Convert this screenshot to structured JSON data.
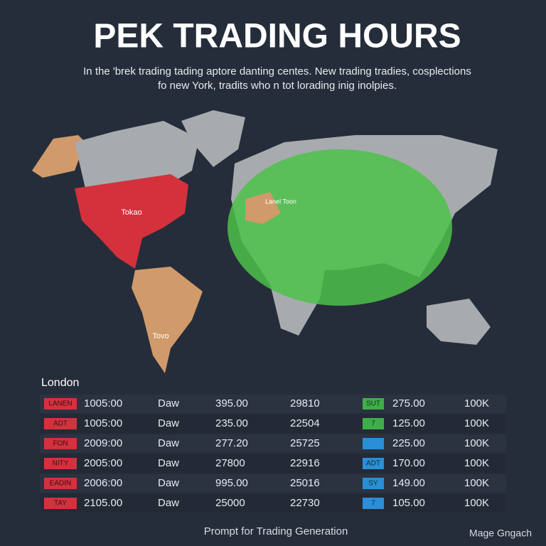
{
  "header": {
    "title": "PEK TRADING HOURS",
    "subtitle": [
      "In the 'brek trading tading aptore danting centes. New trading tradies, cosplections",
      "fo new York, tradits who n tot lorading inig inolpies."
    ]
  },
  "map": {
    "labels": [
      "Tokao",
      "Lanel Toon",
      "Tovo"
    ]
  },
  "table": {
    "heading": "London",
    "rows": [
      {
        "badge": {
          "label": "LANEN",
          "color": "#d4313d"
        },
        "time": "1005:00",
        "day": "Daw",
        "open": "395.00",
        "volume": "29810",
        "badge2": {
          "label": "SUT",
          "color": "#3fae4a"
        },
        "price": "275.00",
        "size": "100K"
      },
      {
        "badge": {
          "label": "ADT",
          "color": "#d4313d"
        },
        "time": "1005:00",
        "day": "Daw",
        "open": "235.00",
        "volume": "22504",
        "badge2": {
          "label": "7",
          "color": "#3fae4a"
        },
        "price": "125.00",
        "size": "100K"
      },
      {
        "badge": {
          "label": "FON",
          "color": "#d4313d"
        },
        "time": "2009:00",
        "day": "Daw",
        "open": "277.20",
        "volume": "25725",
        "badge2": {
          "color": "#2a8fd8"
        },
        "price": "225.00",
        "size": "100K"
      },
      {
        "badge": {
          "label": "NITY",
          "color": "#d4313d"
        },
        "time": "2005:00",
        "day": "Daw",
        "open": "27800",
        "volume": "22916",
        "badge2": {
          "label": "ADT",
          "color": "#2a8fd8"
        },
        "price": "170.00",
        "size": "100K"
      },
      {
        "badge": {
          "label": "EADIN",
          "color": "#d4313d"
        },
        "time": "2006:00",
        "day": "Daw",
        "open": "995.00",
        "volume": "25016",
        "badge2": {
          "label": "SY",
          "color": "#2a8fd8"
        },
        "price": "149.00",
        "size": "100K"
      },
      {
        "badge": {
          "label": "TAY",
          "color": "#d4313d"
        },
        "time": "2105.00",
        "day": "Daw",
        "open": "25000",
        "volume": "22730",
        "badge2": {
          "label": "7",
          "color": "#2a8fd8"
        },
        "price": "105.00",
        "size": "100K"
      }
    ]
  },
  "footer": {
    "left": "Prompt for Trading Generation",
    "right": "Mage Gngach"
  }
}
